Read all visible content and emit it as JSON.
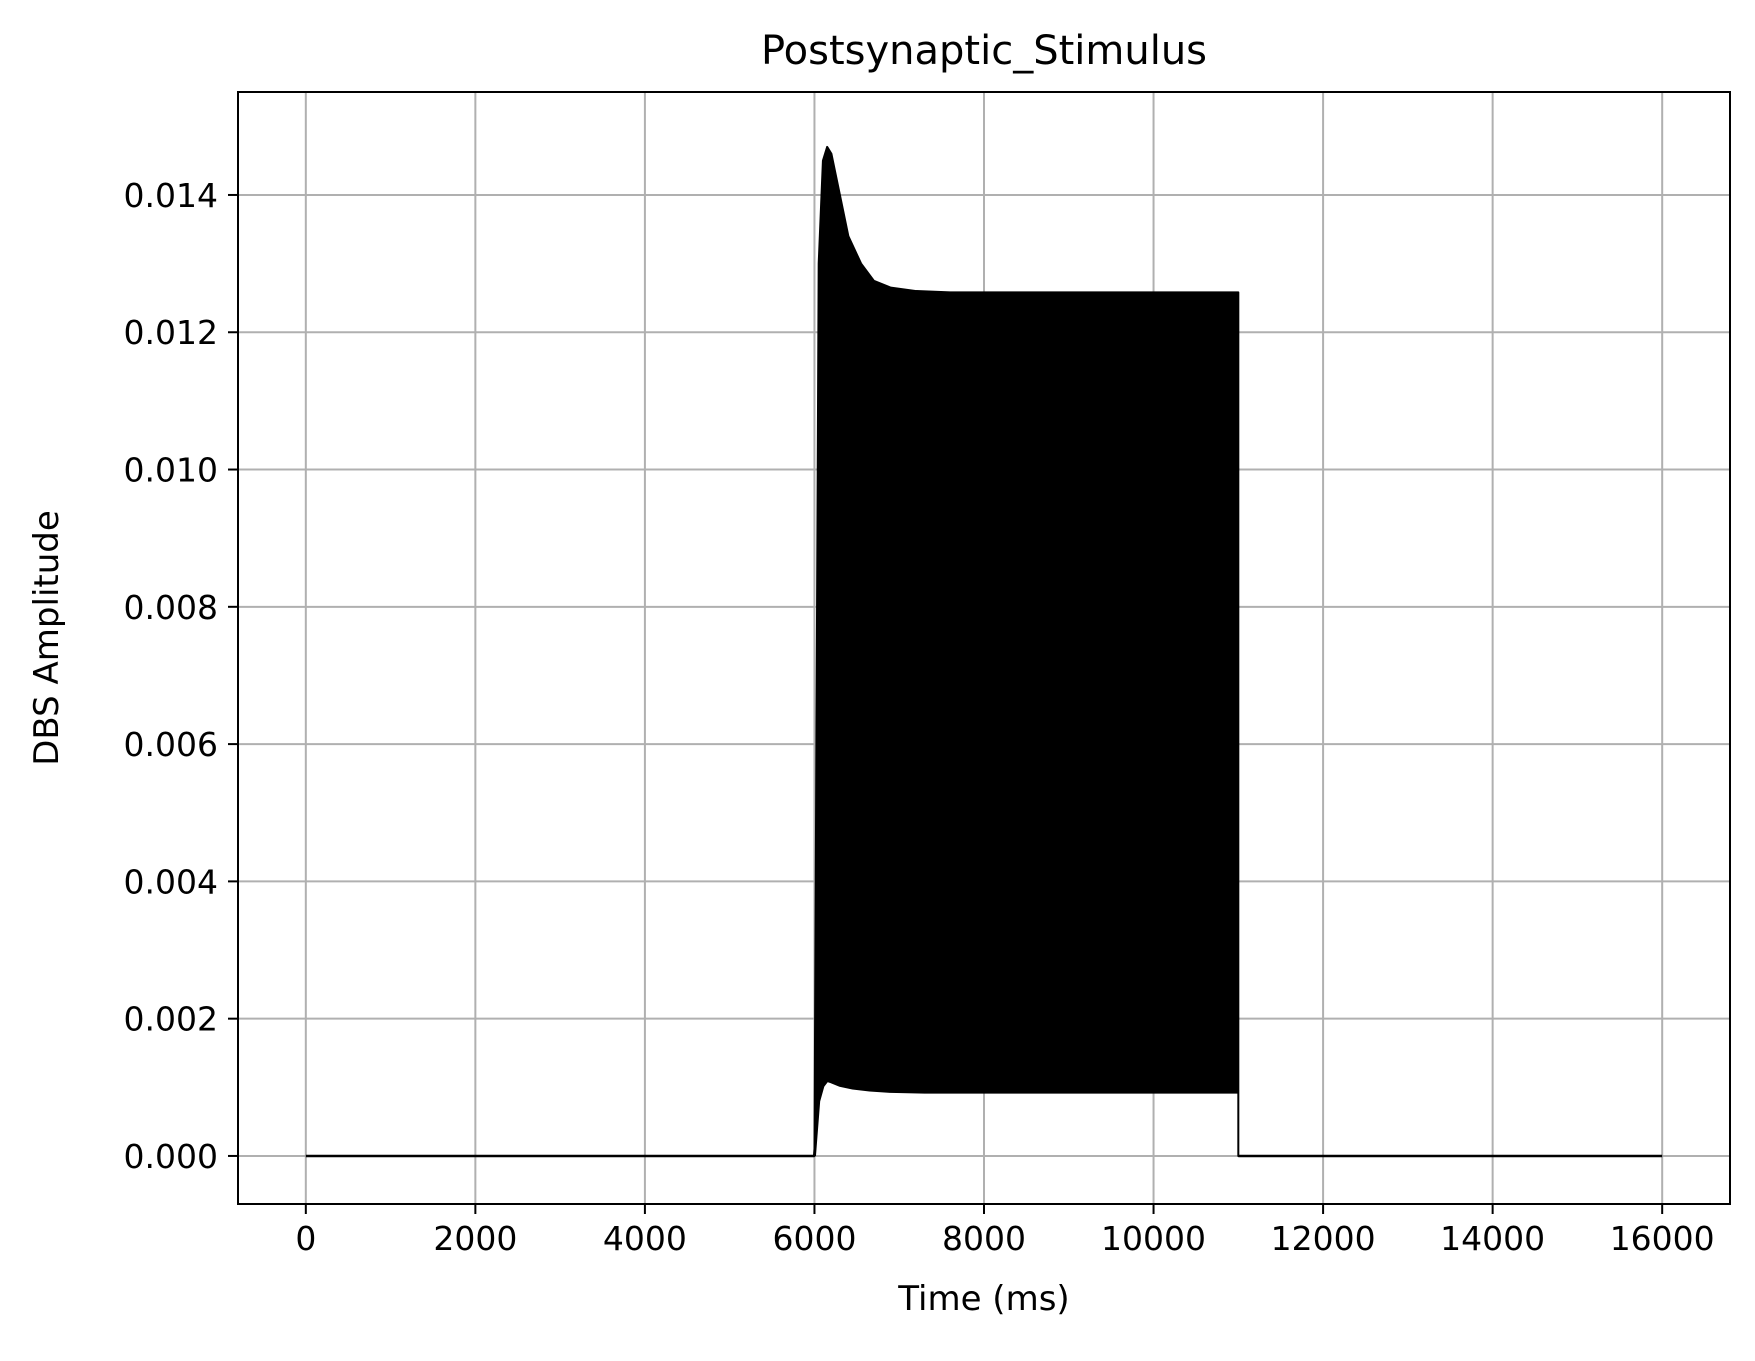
{
  "chart_data": {
    "type": "line",
    "title": "Postsynaptic_Stimulus",
    "xlabel": "Time (ms)",
    "ylabel": "DBS Amplitude",
    "xlim": [
      -800,
      16800
    ],
    "ylim": [
      -0.0007,
      0.0155
    ],
    "xticks": [
      0,
      2000,
      4000,
      6000,
      8000,
      10000,
      12000,
      14000,
      16000
    ],
    "xtick_labels": [
      "0",
      "2000",
      "4000",
      "6000",
      "8000",
      "10000",
      "12000",
      "14000",
      "16000"
    ],
    "yticks": [
      0.0,
      0.002,
      0.004,
      0.006,
      0.008,
      0.01,
      0.012,
      0.014
    ],
    "ytick_labels": [
      "0.000",
      "0.002",
      "0.004",
      "0.006",
      "0.008",
      "0.010",
      "0.012",
      "0.014"
    ],
    "grid": true,
    "series": [
      {
        "color": "#000000",
        "baseline": {
          "x": [
            0,
            16000
          ],
          "y": 0.0
        },
        "stimulation_window": [
          6000,
          11000
        ],
        "upper_envelope": {
          "x": [
            6000,
            6050,
            6100,
            6150,
            6200,
            6300,
            6400,
            6550,
            6700,
            6900,
            7200,
            7600,
            8000,
            9000,
            10000,
            11000
          ],
          "y": [
            0.0,
            0.013,
            0.0145,
            0.0147,
            0.0146,
            0.014,
            0.0134,
            0.013,
            0.01275,
            0.01265,
            0.0126,
            0.01258,
            0.01258,
            0.01258,
            0.01258,
            0.01258
          ]
        },
        "lower_envelope": {
          "x": [
            6000,
            6050,
            6100,
            6150,
            6200,
            6300,
            6450,
            6650,
            6900,
            7300,
            8000,
            9000,
            10000,
            11000
          ],
          "y": [
            0.0,
            0.0008,
            0.00102,
            0.0011,
            0.00108,
            0.00103,
            0.00099,
            0.00096,
            0.00094,
            0.00093,
            0.00093,
            0.00093,
            0.00093,
            0.00093
          ]
        }
      }
    ]
  },
  "colors": {
    "grid": "#b0b0b0",
    "axes": "#000000",
    "line": "#000000",
    "background": "#ffffff"
  }
}
